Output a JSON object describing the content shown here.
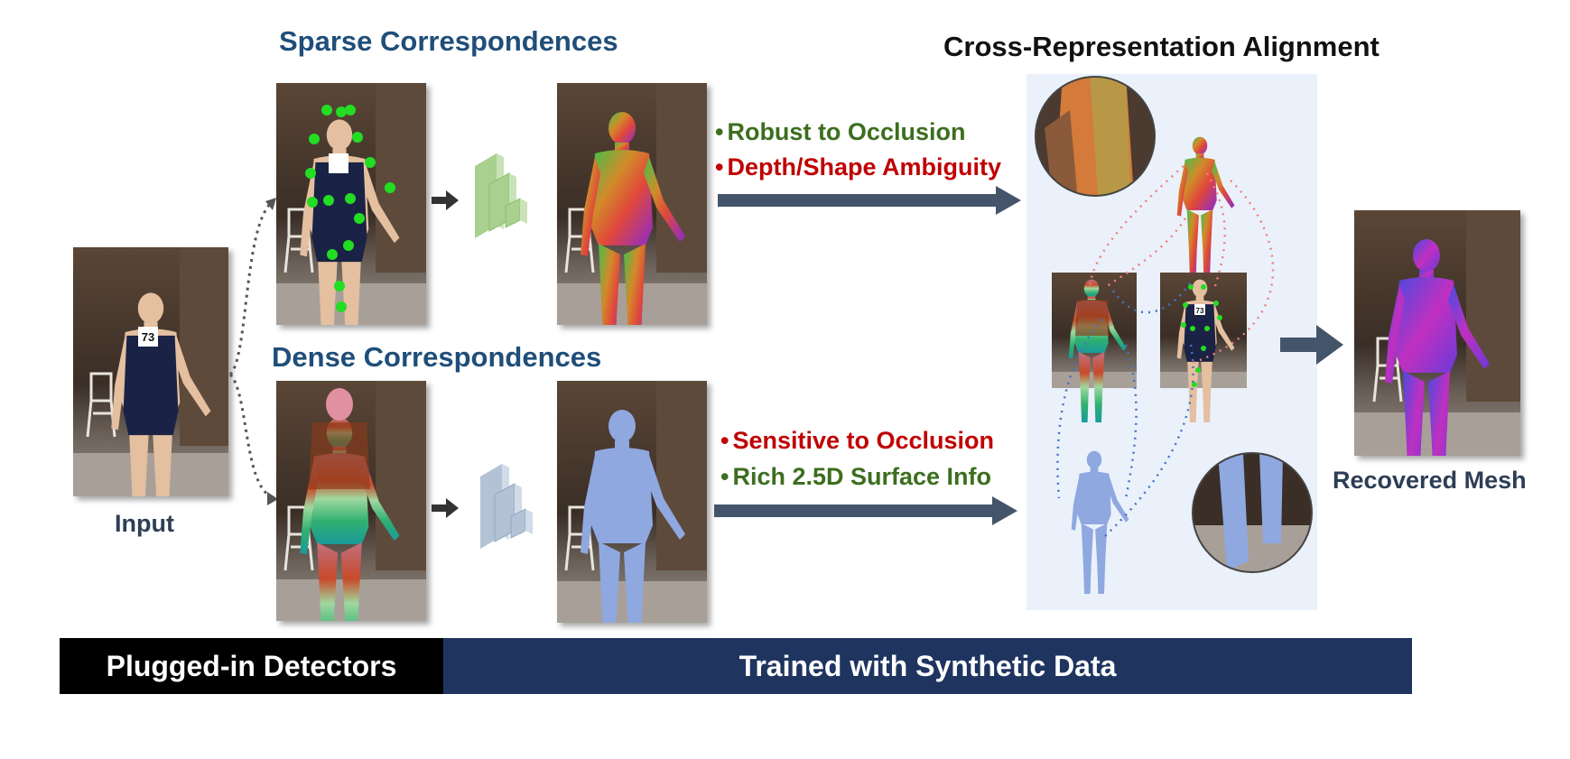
{
  "headings": {
    "sparse": "Sparse Correspondences",
    "dense": "Dense Correspondences",
    "alignment": "Cross-Representation Alignment"
  },
  "captions": {
    "input": "Input",
    "recovered": "Recovered Mesh"
  },
  "sparse_props": [
    {
      "text": "Robust to Occlusion",
      "tone": "positive"
    },
    {
      "text": "Depth/Shape Ambiguity",
      "tone": "negative"
    }
  ],
  "dense_props": [
    {
      "text": "Sensitive to Occlusion",
      "tone": "negative"
    },
    {
      "text": "Rich 2.5D Surface Info",
      "tone": "positive"
    }
  ],
  "bars": {
    "detectors": "Plugged-in Detectors",
    "synthetic": "Trained with Synthetic Data"
  },
  "badges": {
    "bib_number": "73",
    "bib_number_small": "73"
  },
  "colors": {
    "heading_blue": "#1f4e79",
    "positive_green": "#3c6e1e",
    "negative_red": "#c00000",
    "bar_black": "#000000",
    "bar_navy": "#1f3560",
    "arrow_slate": "#44546a",
    "panel_bg": "#eaf1fa",
    "sparse_link_red": "#f08080",
    "dense_link_blue": "#4472c4",
    "keypoint_green": "#22dd22"
  },
  "icons": {
    "sparse_network": "green-layered-network-icon",
    "dense_network": "blue-layered-network-icon"
  }
}
